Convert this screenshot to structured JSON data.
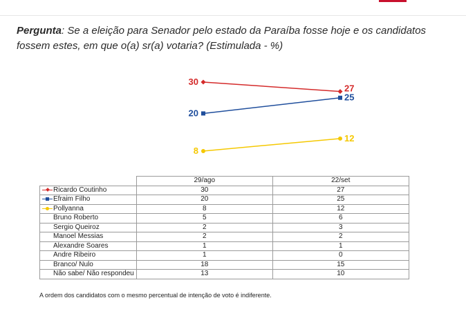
{
  "question": {
    "label": "Pergunta",
    "text": ": Se a eleição para Senador pelo estado da Paraíba fosse hoje e os candidatos fossem estes, em que o(a) sr(a) votaria? (Estimulada - %)"
  },
  "chart_data": {
    "type": "line",
    "x": [
      "29/ago",
      "22/set"
    ],
    "series": [
      {
        "name": "Ricardo Coutinho",
        "values": [
          30,
          27
        ],
        "color": "#d42a2a",
        "marker": "diamond"
      },
      {
        "name": "Efraim Filho",
        "values": [
          20,
          25
        ],
        "color": "#1f4e9c",
        "marker": "square"
      },
      {
        "name": "Pollyanna",
        "values": [
          8,
          12
        ],
        "color": "#f5c800",
        "marker": "circle"
      }
    ],
    "ylim": [
      8,
      30
    ],
    "grid": false,
    "legend": "table-left"
  },
  "table": {
    "headers": [
      "29/ago",
      "22/set"
    ],
    "rows": [
      {
        "name": "Ricardo Coutinho",
        "v1": "30",
        "v2": "27"
      },
      {
        "name": "Efraim Filho",
        "v1": "20",
        "v2": "25"
      },
      {
        "name": "Pollyanna",
        "v1": "8",
        "v2": "12"
      },
      {
        "name": "Bruno Roberto",
        "v1": "5",
        "v2": "6"
      },
      {
        "name": "Sergio Queiroz",
        "v1": "2",
        "v2": "3"
      },
      {
        "name": "Manoel Messias",
        "v1": "2",
        "v2": "2"
      },
      {
        "name": "Alexandre Soares",
        "v1": "1",
        "v2": "1"
      },
      {
        "name": "Andre Ribeiro",
        "v1": "1",
        "v2": "0"
      },
      {
        "name": "Branco/ Nulo",
        "v1": "18",
        "v2": "15"
      },
      {
        "name": "Não sabe/ Não respondeu",
        "v1": "13",
        "v2": "10"
      }
    ]
  },
  "footnote": "A ordem dos candidatos com o mesmo percentual de intenção de voto é indiferente."
}
